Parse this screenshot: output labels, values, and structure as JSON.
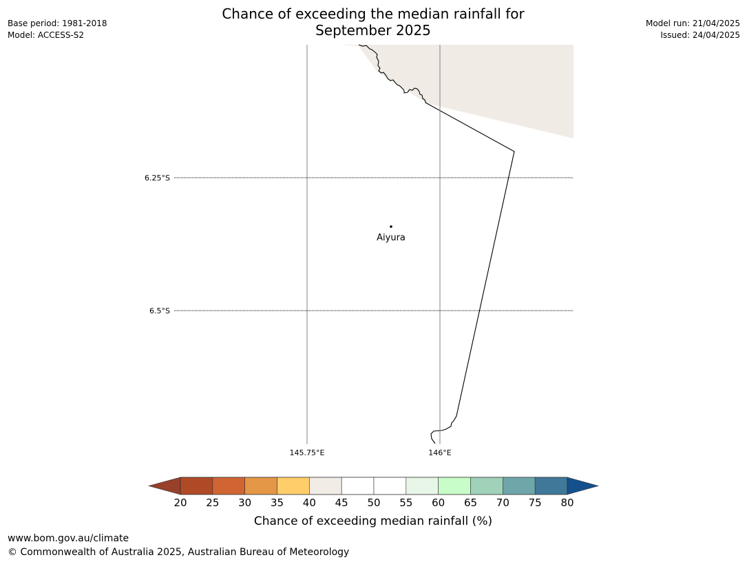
{
  "header": {
    "title_line1": "Chance of exceeding the median rainfall for",
    "title_line2": "September 2025",
    "base_period": "Base period: 1981-2018",
    "model": "Model: ACCESS-S2",
    "model_run": "Model run: 21/04/2025",
    "issued": "Issued: 24/04/2025"
  },
  "map": {
    "latitude_labels": [
      "6.25°S",
      "6.5°S"
    ],
    "longitude_labels": [
      "145.75°E",
      "146°E"
    ],
    "place": "Aiyura",
    "land_fill_color": "#f0ebe5",
    "gridline_color": "#808080"
  },
  "legend": {
    "title": "Chance of exceeding median rainfall (%)",
    "ticks": [
      "20",
      "25",
      "30",
      "35",
      "40",
      "45",
      "50",
      "55",
      "60",
      "65",
      "70",
      "75",
      "80"
    ],
    "low_extend_color": "#98402a",
    "high_extend_color": "#14508c",
    "colors": [
      "#b04a26",
      "#d06533",
      "#e49746",
      "#ffcd6a",
      "#f2ece6",
      "#ffffff",
      "#ffffff",
      "#e8f6e8",
      "#c8fcc8",
      "#a0d2ba",
      "#6fa6aa",
      "#3f7898"
    ]
  },
  "footer": {
    "url": "www.bom.gov.au/climate",
    "copyright": "© Commonwealth of Australia 2025, Australian Bureau of Meteorology"
  }
}
